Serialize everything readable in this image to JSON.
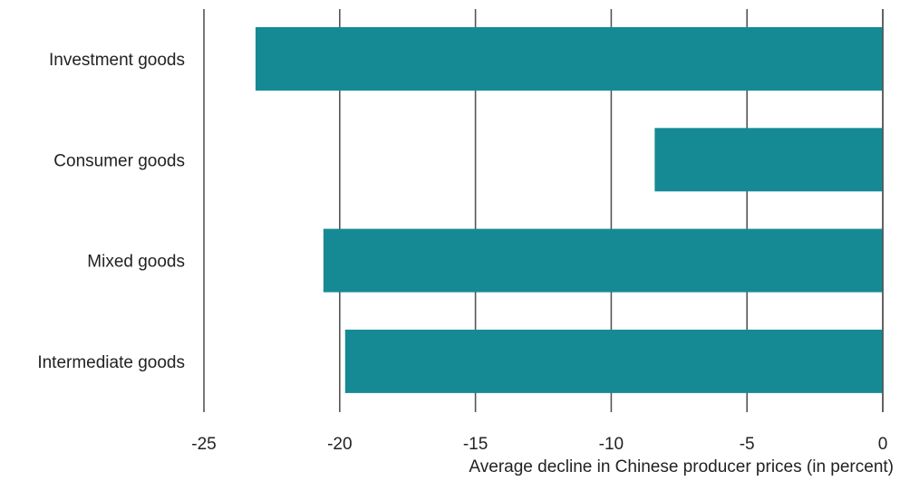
{
  "chart_data": {
    "type": "bar",
    "orientation": "horizontal",
    "categories": [
      "Investment goods",
      "Consumer goods",
      "Mixed goods",
      "Intermediate goods"
    ],
    "values": [
      -23.1,
      -8.4,
      -20.6,
      -19.8
    ],
    "xlabel": "Average decline in Chinese producer prices (in percent)",
    "ylabel": "",
    "xlim": [
      -25,
      0
    ],
    "xticks": [
      "-25",
      "-20",
      "-15",
      "-10",
      "-5",
      "0"
    ],
    "grid": "vertical",
    "bar_color": "#158a95",
    "grid_color": "#555555"
  }
}
